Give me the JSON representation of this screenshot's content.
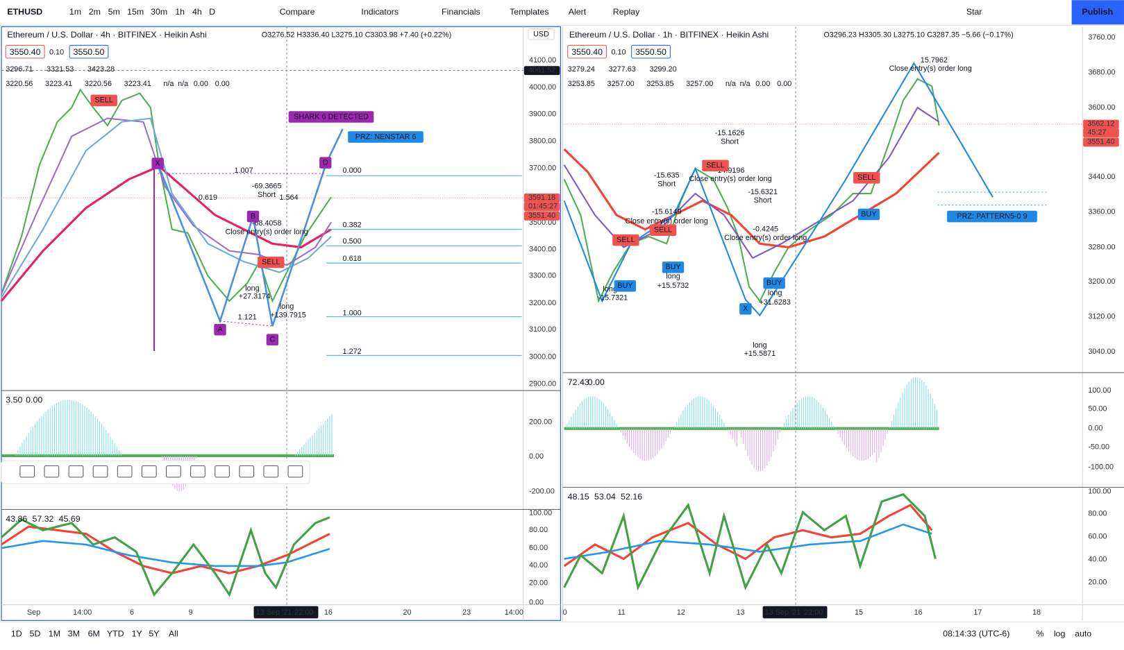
{
  "toolbar": {
    "symbol": "ETHUSD",
    "intervals": [
      "1m",
      "2m",
      "5m",
      "15m",
      "30m",
      "1h",
      "4h",
      "D"
    ],
    "buttons": [
      "Compare",
      "Indicators",
      "Financials",
      "Templates",
      "Alert",
      "Replay"
    ],
    "layout": "Star",
    "publish": "Publish"
  },
  "charts": [
    {
      "header": "Ethereum / U.S. Dollar · 4h · BITFINEX · Heikin Ashi",
      "ohlc": "O3276.52 H3336.40 L3275.10 C3303.98 +7.40 (+0.22%)",
      "sell": "3550.40",
      "spread": "0.10",
      "buy": "3550.50",
      "legend_row1": [
        "3296.71",
        "3321.53",
        "3423.28"
      ],
      "legend_row2": [
        "3220.56",
        "3223.41",
        "3220.56",
        "3223.41",
        "n/a",
        "n/a",
        "0.00",
        "0.00"
      ],
      "currency": "USD",
      "price_axis": [
        "4100.00",
        "4000.00",
        "3900.00",
        "3800.00",
        "3700.00",
        "3500.00",
        "3400.00",
        "3300.00",
        "3200.00",
        "3100.00",
        "3000.00",
        "2900.00"
      ],
      "price_labels": [
        "4061.52",
        "3591.18",
        "01:45:27",
        "3551.40"
      ],
      "time_axis": [
        "Sep",
        "14:00",
        "6",
        "9",
        "13 Sep '21",
        "22:00",
        "16",
        "20",
        "23",
        "14:00"
      ],
      "annotations": [
        "SHARK 6 DETECTED",
        "PRZ: NENSTAR 6",
        "-69.3665",
        "Short",
        "1.007",
        "0.619",
        "1.564",
        "-68.4058",
        "Close entry(s) order long",
        "long",
        "+27.3174",
        "long",
        "+139.7915",
        "1.121",
        "X",
        "A",
        "B",
        "C",
        "D",
        "SELL",
        "SELL"
      ],
      "fib_levels": [
        "0.000",
        "0.382",
        "0.500",
        "0.618",
        "1.000",
        "1.272"
      ],
      "osc_values": [
        "3.50",
        "0.00"
      ],
      "osc_axis": [
        "200.00",
        "0.00",
        "-200.00"
      ],
      "rsi_values": [
        "43.86",
        "57.32",
        "45.69"
      ],
      "rsi_axis": [
        "100.00",
        "80.00",
        "60.00",
        "40.00",
        "20.00",
        "0.00"
      ]
    },
    {
      "header": "Ethereum / U.S. Dollar · 1h · BITFINEX · Heikin Ashi",
      "ohlc": "O3296.23 H3305.30 L3275.10 C3287.35 −5.66 (−0.17%)",
      "sell": "3550.40",
      "spread": "0.10",
      "buy": "3550.50",
      "legend_row1": [
        "3279.24",
        "3277.63",
        "3299.20"
      ],
      "legend_row2": [
        "3253.85",
        "3257.00",
        "3253.85",
        "3257.00",
        "n/a",
        "n/a",
        "0.00",
        "0.00"
      ],
      "price_axis": [
        "3760.00",
        "3680.00",
        "3600.00",
        "3440.00",
        "3360.00",
        "3280.00",
        "3200.00",
        "3120.00",
        "3040.00"
      ],
      "price_labels": [
        "3562.12",
        "45:27",
        "3551.40"
      ],
      "time_axis": [
        "0",
        "11",
        "12",
        "13",
        "13 Sep '21",
        "22:00",
        "15",
        "16",
        "17",
        "18"
      ],
      "annotations": [
        "-15.1626",
        "Short",
        "-15.635",
        "Short",
        "-14.9196",
        "Close entry(s) order long",
        "-15.6321",
        "Short",
        "-15.6149",
        "Close entry(s) order long",
        "-0.4245",
        "Close entry(s) order long",
        "long",
        "+15.5732",
        "long",
        "-15.7321",
        "long",
        "+31.6283",
        "long",
        "+15.5871",
        "15.7962",
        "Close entry(s) order long",
        "PRZ: PATTERN5-0 9",
        "SELL",
        "SELL",
        "SELL",
        "SELL",
        "BUY",
        "BUY",
        "BUY",
        "BUY",
        "X"
      ],
      "osc_values": [
        "72.43",
        "0.00"
      ],
      "osc_axis": [
        "100.00",
        "50.00",
        "0.00",
        "-50.00",
        "-100.00"
      ],
      "rsi_values": [
        "48.15",
        "53.04",
        "52.16"
      ],
      "rsi_axis": [
        "100.00",
        "80.00",
        "60.00",
        "40.00",
        "20.00"
      ]
    }
  ],
  "bottom": {
    "ranges": [
      "1D",
      "5D",
      "1M",
      "3M",
      "6M",
      "YTD",
      "1Y",
      "5Y",
      "All"
    ],
    "clock": "08:14:33 (UTC-6)",
    "percent": "%",
    "log": "log",
    "auto": "auto"
  }
}
